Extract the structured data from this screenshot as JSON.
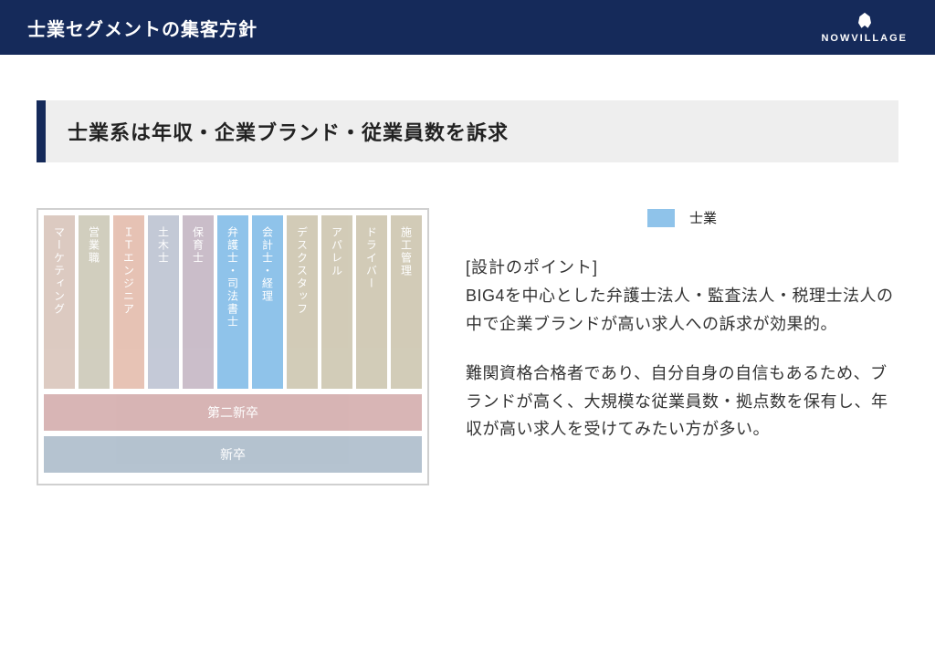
{
  "header": {
    "title": "士業セグメントの集客方針",
    "brand": "NOWVILLAGE"
  },
  "subtitle": "士業系は年収・企業ブランド・従業員数を訴求",
  "legend": {
    "swatch_color": "#8fc3ea",
    "label": "士業"
  },
  "bars": [
    {
      "label": "マーケティング",
      "color": "#b38b78",
      "highlight": false
    },
    {
      "label": "営業職",
      "color": "#9a9370",
      "highlight": false
    },
    {
      "label": "ＩＴエンジニア",
      "color": "#c97a5a",
      "highlight": false
    },
    {
      "label": "土木士",
      "color": "#7c88a6",
      "highlight": false
    },
    {
      "label": "保育士",
      "color": "#8c6f8a",
      "highlight": false
    },
    {
      "label": "弁護士・司法書士",
      "color": "#8fc3ea",
      "highlight": true
    },
    {
      "label": "会計士・経理",
      "color": "#8fc3ea",
      "highlight": true
    },
    {
      "label": "デスクスタッフ",
      "color": "#9c8d62",
      "highlight": false
    },
    {
      "label": "アパレル",
      "color": "#9c8d62",
      "highlight": false
    },
    {
      "label": "ドライバー",
      "color": "#9c8d62",
      "highlight": false
    },
    {
      "label": "施工管理",
      "color": "#9c8d62",
      "highlight": false
    }
  ],
  "bands": [
    {
      "label": "第二新卒",
      "color": "#a85a5a"
    },
    {
      "label": "新卒",
      "color": "#5a7a96"
    }
  ],
  "points": {
    "heading": "[設計のポイント]",
    "para1": "BIG4を中心とした弁護士法人・監査法人・税理士法人の中で企業ブランドが高い求人への訴求が効果的。",
    "para2": "難関資格合格者であり、自分自身の自信もあるため、ブランドが高く、大規模な従業員数・拠点数を保有し、年収が高い求人を受けてみたい方が多い。"
  },
  "colors": {
    "header_bg": "#152a5a",
    "subtitle_bg": "#eeeeee",
    "frame_border": "#d0d0d0"
  }
}
